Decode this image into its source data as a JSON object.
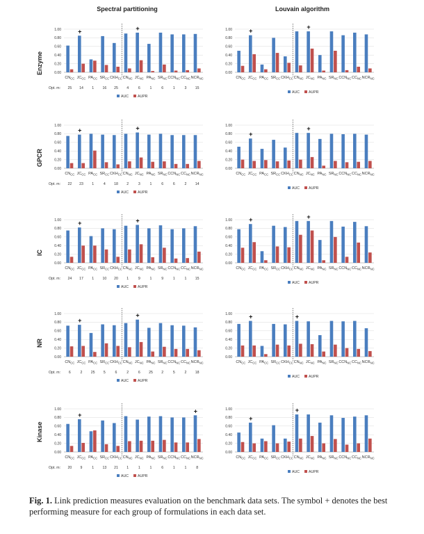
{
  "column_titles": [
    "Spectral partitioning",
    "Louvain algorithm"
  ],
  "row_labels": [
    "Enzyme",
    "GPCR",
    "IC",
    "NR",
    "Kinase"
  ],
  "legend": {
    "auc": "AUC",
    "aupr": "AUPR"
  },
  "opt_label": "Opt. m:",
  "caption": {
    "label": "Fig. 1.",
    "text": "Link prediction measures evaluation on the benchmark data sets. The symbol + denotes the best performing measure for each group of formulations in each data set."
  },
  "colors": {
    "auc": "#4a7ebf",
    "aupr": "#c0504d",
    "divider": "#555555"
  },
  "chart_data": [
    {
      "type": "bar",
      "method": "Spectral partitioning",
      "dataset": "Enzyme",
      "categories": [
        "CN_CC",
        "JC_CC",
        "PA_CC",
        "SR_CC",
        "CKH_CC",
        "CN_NC",
        "JC_NC",
        "PA_NC",
        "SR_NC",
        "CCN_NC",
        "CC_NC",
        "NCR_NC"
      ],
      "ylim": [
        0,
        1
      ],
      "yticks": [
        "0.00",
        "0.20",
        "0.40",
        "0.60",
        "0.80",
        "1.00"
      ],
      "series": [
        {
          "name": "AUC",
          "values": [
            0.62,
            0.85,
            0.3,
            0.84,
            0.68,
            0.9,
            0.92,
            0.66,
            0.92,
            0.88,
            0.88,
            0.89
          ]
        },
        {
          "name": "AUPR",
          "values": [
            0.07,
            0.2,
            0.27,
            0.17,
            0.13,
            0.09,
            0.28,
            0.03,
            0.18,
            0.04,
            0.05,
            0.09
          ]
        }
      ],
      "best": [
        1,
        6
      ],
      "opt_m": [
        "25",
        "14",
        "1",
        "16",
        "25",
        "4",
        "6",
        "1",
        "6",
        "1",
        "3",
        "15"
      ]
    },
    {
      "type": "bar",
      "method": "Louvain algorithm",
      "dataset": "Enzyme",
      "categories": [
        "CN_CC",
        "JC_CC",
        "PA_CC",
        "SR_CC",
        "CKH_CC",
        "CN_NC",
        "JC_NC",
        "PA_NC",
        "SR_NC",
        "CCN_NC",
        "CC_NC",
        "NCR_NC"
      ],
      "ylim": [
        0,
        1
      ],
      "yticks": [
        "0.00",
        "0.20",
        "0.40",
        "0.60",
        "0.80",
        "1.00"
      ],
      "series": [
        {
          "name": "AUC",
          "values": [
            0.5,
            0.86,
            0.18,
            0.8,
            0.37,
            0.95,
            0.95,
            0.4,
            0.95,
            0.86,
            0.92,
            0.88
          ]
        },
        {
          "name": "AUPR",
          "values": [
            0.15,
            0.42,
            0.07,
            0.45,
            0.22,
            0.16,
            0.55,
            0.04,
            0.5,
            0.05,
            0.13,
            0.09
          ]
        }
      ],
      "best": [
        1,
        6
      ],
      "opt_m": []
    },
    {
      "type": "bar",
      "method": "Spectral partitioning",
      "dataset": "GPCR",
      "categories": [
        "CN_CC",
        "JC_CC",
        "PA_CC",
        "SR_CC",
        "CKH_CC",
        "CN_NC",
        "JC_NC",
        "PA_NC",
        "SR_NC",
        "CCN_NC",
        "CC_NC",
        "NCR_NC"
      ],
      "ylim": [
        0,
        1
      ],
      "yticks": [
        "0.00",
        "0.20",
        "0.40",
        "0.60",
        "0.80",
        "1.00"
      ],
      "series": [
        {
          "name": "AUC",
          "values": [
            0.75,
            0.78,
            0.8,
            0.78,
            0.77,
            0.8,
            0.83,
            0.78,
            0.8,
            0.77,
            0.77,
            0.77
          ]
        },
        {
          "name": "AUPR",
          "values": [
            0.12,
            0.12,
            0.41,
            0.14,
            0.09,
            0.16,
            0.25,
            0.15,
            0.16,
            0.1,
            0.1,
            0.17
          ]
        }
      ],
      "best": [
        1,
        6
      ],
      "opt_m": [
        "22",
        "23",
        "1",
        "4",
        "18",
        "2",
        "3",
        "1",
        "6",
        "6",
        "2",
        "14"
      ]
    },
    {
      "type": "bar",
      "method": "Louvain algorithm",
      "dataset": "GPCR",
      "categories": [
        "CN_CC",
        "JC_CC",
        "PA_CC",
        "SR_CC",
        "CKH_CC",
        "CN_NC",
        "JC_NC",
        "PA_NC",
        "SR_NC",
        "CCN_NC",
        "CC_NC",
        "NCR_NC"
      ],
      "ylim": [
        0,
        1
      ],
      "yticks": [
        "0.00",
        "0.20",
        "0.40",
        "0.60",
        "0.80",
        "1.00"
      ],
      "series": [
        {
          "name": "AUC",
          "values": [
            0.5,
            0.69,
            0.45,
            0.66,
            0.48,
            0.82,
            0.82,
            0.68,
            0.8,
            0.79,
            0.8,
            0.78
          ]
        },
        {
          "name": "AUPR",
          "values": [
            0.2,
            0.17,
            0.19,
            0.16,
            0.18,
            0.2,
            0.26,
            0.06,
            0.17,
            0.14,
            0.15,
            0.17
          ]
        }
      ],
      "best": [
        1,
        6
      ],
      "opt_m": []
    },
    {
      "type": "bar",
      "method": "Spectral partitioning",
      "dataset": "IC",
      "categories": [
        "CN_CC",
        "JC_CC",
        "PA_CC",
        "SR_CC",
        "CKH_CC",
        "CN_NC",
        "JC_NC",
        "PA_NC",
        "SR_NC",
        "CCN_NC",
        "CC_NC",
        "NCR_NC"
      ],
      "ylim": [
        0,
        1
      ],
      "yticks": [
        "0.00",
        "0.20",
        "0.40",
        "0.60",
        "0.80",
        "1.00"
      ],
      "series": [
        {
          "name": "AUC",
          "values": [
            0.75,
            0.82,
            0.62,
            0.8,
            0.78,
            0.86,
            0.88,
            0.8,
            0.87,
            0.78,
            0.8,
            0.85
          ]
        },
        {
          "name": "AUPR",
          "values": [
            0.14,
            0.4,
            0.4,
            0.31,
            0.14,
            0.31,
            0.43,
            0.13,
            0.35,
            0.1,
            0.11,
            0.26
          ]
        }
      ],
      "best": [
        1,
        6
      ],
      "opt_m": [
        "24",
        "17",
        "1",
        "10",
        "20",
        "1",
        "9",
        "1",
        "9",
        "1",
        "1",
        "15"
      ]
    },
    {
      "type": "bar",
      "method": "Louvain algorithm",
      "dataset": "IC",
      "categories": [
        "CN_CC",
        "JC_CC",
        "PA_CC",
        "SR_CC",
        "CKH_CC",
        "CN_NC",
        "JC_NC",
        "PA_NC",
        "SR_NC",
        "CCN_NC",
        "CC_NC",
        "NCR_NC"
      ],
      "ylim": [
        0,
        1
      ],
      "yticks": [
        "0.00",
        "0.20",
        "0.40",
        "0.60",
        "0.80",
        "1.00"
      ],
      "series": [
        {
          "name": "AUC",
          "values": [
            0.78,
            0.9,
            0.27,
            0.86,
            0.83,
            0.97,
            0.97,
            0.53,
            0.97,
            0.84,
            0.95,
            0.85
          ]
        },
        {
          "name": "AUPR",
          "values": [
            0.35,
            0.48,
            0.06,
            0.38,
            0.36,
            0.65,
            0.75,
            0.06,
            0.6,
            0.14,
            0.47,
            0.24
          ]
        }
      ],
      "best": [
        1,
        6
      ],
      "opt_m": []
    },
    {
      "type": "bar",
      "method": "Spectral partitioning",
      "dataset": "NR",
      "categories": [
        "CN_CC",
        "JC_CC",
        "PA_CC",
        "SR_CC",
        "CKH_CC",
        "CN_NC",
        "JC_NC",
        "PA_NC",
        "SR_NC",
        "CCN_NC",
        "CC_NC",
        "NCR_NC"
      ],
      "ylim": [
        0,
        1
      ],
      "yticks": [
        "0.00",
        "0.20",
        "0.40",
        "0.60",
        "0.80",
        "1.00"
      ],
      "series": [
        {
          "name": "AUC",
          "values": [
            0.72,
            0.74,
            0.55,
            0.75,
            0.73,
            0.78,
            0.86,
            0.67,
            0.78,
            0.73,
            0.72,
            0.68
          ]
        },
        {
          "name": "AUPR",
          "values": [
            0.24,
            0.25,
            0.11,
            0.31,
            0.25,
            0.22,
            0.34,
            0.12,
            0.23,
            0.18,
            0.18,
            0.15
          ]
        }
      ],
      "best": [
        1,
        6
      ],
      "opt_m": [
        "6",
        "2",
        "25",
        "5",
        "6",
        "2",
        "6",
        "25",
        "2",
        "5",
        "2",
        "18"
      ]
    },
    {
      "type": "bar",
      "method": "Louvain algorithm",
      "dataset": "NR",
      "categories": [
        "CN_CC",
        "JC_CC",
        "PA_CC",
        "SR_CC",
        "CKH_CC",
        "CN_NC",
        "JC_NC",
        "PA_NC",
        "SR_NC",
        "CCN_NC",
        "CC_NC",
        "NCR_NC"
      ],
      "ylim": [
        0,
        1
      ],
      "yticks": [
        "0.00",
        "0.20",
        "0.40",
        "0.60",
        "0.80",
        "1.00"
      ],
      "series": [
        {
          "name": "AUC",
          "values": [
            0.76,
            0.83,
            0.25,
            0.76,
            0.75,
            0.83,
            0.82,
            0.5,
            0.83,
            0.82,
            0.83,
            0.66
          ]
        },
        {
          "name": "AUPR",
          "values": [
            0.26,
            0.26,
            0.06,
            0.28,
            0.26,
            0.3,
            0.29,
            0.12,
            0.28,
            0.2,
            0.18,
            0.13
          ]
        }
      ],
      "best": [
        1,
        5
      ],
      "opt_m": []
    },
    {
      "type": "bar",
      "method": "Spectral partitioning",
      "dataset": "Kinase",
      "categories": [
        "CN_CC",
        "JC_CC",
        "PA_CC",
        "SR_CC",
        "CKH_CC",
        "CN_NC",
        "JC_NC",
        "PA_NC",
        "SR_NC",
        "CCN_NC",
        "CC_NC",
        "NCR_NC"
      ],
      "ylim": [
        0,
        1
      ],
      "yticks": [
        "0.00",
        "0.20",
        "0.40",
        "0.60",
        "0.80",
        "1.00"
      ],
      "series": [
        {
          "name": "AUC",
          "values": [
            0.65,
            0.76,
            0.48,
            0.73,
            0.67,
            0.83,
            0.75,
            0.82,
            0.83,
            0.8,
            0.8,
            0.85
          ]
        },
        {
          "name": "AUPR",
          "values": [
            0.14,
            0.21,
            0.5,
            0.18,
            0.14,
            0.25,
            0.26,
            0.26,
            0.28,
            0.22,
            0.22,
            0.3
          ]
        }
      ],
      "best": [
        1,
        11
      ],
      "opt_m": [
        "20",
        "9",
        "1",
        "13",
        "21",
        "1",
        "1",
        "1",
        "6",
        "1",
        "1",
        "8"
      ]
    },
    {
      "type": "bar",
      "method": "Louvain algorithm",
      "dataset": "Kinase",
      "categories": [
        "CN_CC",
        "JC_CC",
        "PA_CC",
        "SR_CC",
        "CKH_CC",
        "CN_NC",
        "JC_NC",
        "PA_NC",
        "SR_NC",
        "CCN_NC",
        "CC_NC",
        "NCR_NC"
      ],
      "ylim": [
        0,
        1
      ],
      "yticks": [
        "0.00",
        "0.20",
        "0.40",
        "0.60",
        "0.80",
        "1.00"
      ],
      "series": [
        {
          "name": "AUC",
          "values": [
            0.45,
            0.68,
            0.31,
            0.62,
            0.31,
            0.87,
            0.87,
            0.68,
            0.85,
            0.79,
            0.82,
            0.85
          ]
        },
        {
          "name": "AUPR",
          "values": [
            0.23,
            0.2,
            0.25,
            0.2,
            0.24,
            0.31,
            0.37,
            0.2,
            0.3,
            0.17,
            0.2,
            0.31
          ]
        }
      ],
      "best": [
        1,
        5
      ],
      "opt_m": []
    }
  ]
}
